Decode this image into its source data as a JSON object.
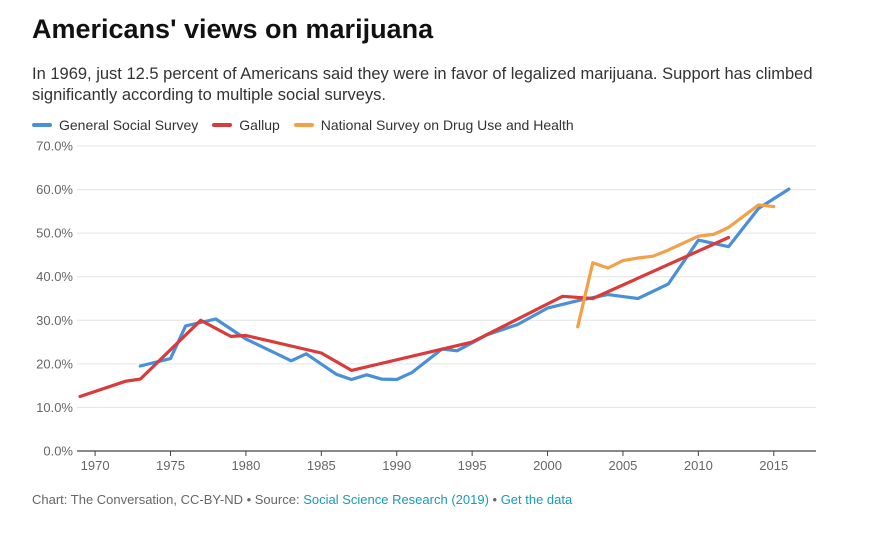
{
  "title": "Americans' views on marijuana",
  "subtitle": "In 1969, just 12.5 percent of Americans said they were in favor of legalized marijuana. Support has climbed significantly according to multiple social surveys.",
  "footer": {
    "chart_credit": "Chart: The Conversation, CC-BY-ND",
    "separator": " • ",
    "source_label": "Source: ",
    "source_link": "Social Science Research (2019)",
    "data_link": "Get the data"
  },
  "chart_data": {
    "type": "line",
    "title": "Americans' views on marijuana",
    "xlabel": "",
    "ylabel": "",
    "xlim": [
      1968.8,
      2017.8
    ],
    "ylim": [
      0,
      70
    ],
    "x_ticks": [
      1970,
      1975,
      1980,
      1985,
      1990,
      1995,
      2000,
      2005,
      2010,
      2015
    ],
    "y_ticks": [
      0,
      10,
      20,
      30,
      40,
      50,
      60,
      70
    ],
    "y_tick_labels": [
      "0.0%",
      "10.0%",
      "20.0%",
      "30.0%",
      "40.0%",
      "50.0%",
      "60.0%",
      "70.0%"
    ],
    "grid": true,
    "legend_position": "top-left",
    "series": [
      {
        "name": "General Social Survey",
        "color": "#4a90d9",
        "points": [
          [
            1973,
            19.5
          ],
          [
            1975,
            21.2
          ],
          [
            1976,
            28.7
          ],
          [
            1978,
            30.3
          ],
          [
            1980,
            25.7
          ],
          [
            1983,
            20.7
          ],
          [
            1984,
            22.3
          ],
          [
            1986,
            17.6
          ],
          [
            1987,
            16.4
          ],
          [
            1988,
            17.5
          ],
          [
            1989,
            16.5
          ],
          [
            1990,
            16.4
          ],
          [
            1991,
            18.0
          ],
          [
            1993,
            23.4
          ],
          [
            1994,
            23.0
          ],
          [
            1996,
            26.7
          ],
          [
            1998,
            29.0
          ],
          [
            2000,
            32.8
          ],
          [
            2002,
            34.5
          ],
          [
            2004,
            35.9
          ],
          [
            2006,
            35.0
          ],
          [
            2008,
            38.3
          ],
          [
            2010,
            48.4
          ],
          [
            2012,
            46.9
          ],
          [
            2014,
            55.7
          ],
          [
            2016,
            60.1
          ]
        ]
      },
      {
        "name": "Gallup",
        "color": "#d93b3b",
        "points": [
          [
            1969,
            12.5
          ],
          [
            1972,
            16.0
          ],
          [
            1973,
            16.5
          ],
          [
            1977,
            30.0
          ],
          [
            1979,
            26.3
          ],
          [
            1980,
            26.5
          ],
          [
            1985,
            22.5
          ],
          [
            1987,
            18.5
          ],
          [
            1995,
            25.0
          ],
          [
            2001,
            35.5
          ],
          [
            2003,
            35.0
          ],
          [
            2012,
            49.0
          ]
        ]
      },
      {
        "name": "National Survey on Drug Use and Health",
        "color": "#f2a04a",
        "points": [
          [
            2002,
            28.5
          ],
          [
            2003,
            43.2
          ],
          [
            2004,
            42.0
          ],
          [
            2005,
            43.7
          ],
          [
            2006,
            44.3
          ],
          [
            2007,
            44.7
          ],
          [
            2008,
            46.1
          ],
          [
            2010,
            49.3
          ],
          [
            2011,
            49.7
          ],
          [
            2012,
            51.3
          ],
          [
            2014,
            56.5
          ],
          [
            2015,
            56.1
          ]
        ]
      }
    ]
  }
}
